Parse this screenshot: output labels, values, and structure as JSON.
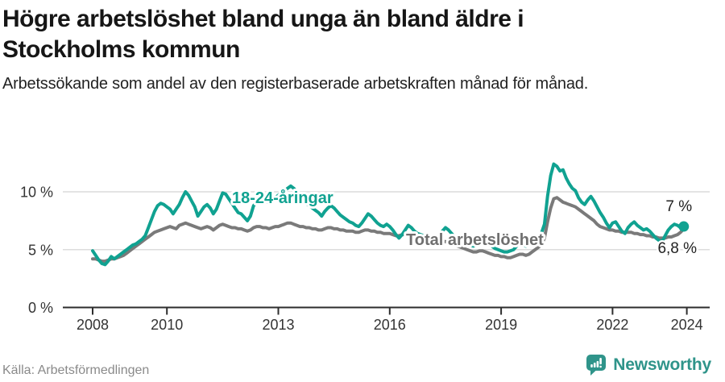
{
  "header": {
    "title": "Högre arbetslöshet bland unga än bland äldre i Stockholms kommun",
    "subtitle": "Arbetssökande som andel av den registerbaserade arbetskraften månad för månad."
  },
  "footer": {
    "source": "Källa: Arbetsförmedlingen",
    "brand": "Newsworthy",
    "brand_icon": "newsworthy-speech-bubble-bar-chart-icon"
  },
  "colors": {
    "young_line": "#10a291",
    "total_line": "#7a7a7a",
    "total_label_text": "#6f6f6f",
    "grid": "#dcdcdc",
    "axis": "#2d2d2d",
    "tick_text": "#333333",
    "annotation_text": "#222222",
    "brand_teal": "#2f948a"
  },
  "chart_data": {
    "type": "line",
    "title": "Högre arbetslöshet bland unga än bland äldre i Stockholms kommun",
    "subtitle": "Arbetssökande som andel av den registerbaserade arbetskraften månad för månad.",
    "frequency": "monthly",
    "x_start": "2008-01",
    "x_end": "2023-12",
    "x_ticks": [
      2008,
      2010,
      2013,
      2016,
      2019,
      2022,
      2024
    ],
    "y_ticks": [
      0,
      5,
      10
    ],
    "y_tick_labels": [
      "0 %",
      "5 %",
      "10 %"
    ],
    "ylim": [
      0,
      13
    ],
    "grid": "horizontal-only",
    "legend": "inline-series-labels",
    "series": [
      {
        "id": "young",
        "name": "18-24-åringar",
        "color": "#10a291",
        "values": [
          4.9,
          4.5,
          4.1,
          3.8,
          3.7,
          4.0,
          4.4,
          4.2,
          4.4,
          4.6,
          4.8,
          5.0,
          5.2,
          5.4,
          5.5,
          5.7,
          5.9,
          6.2,
          6.9,
          7.6,
          8.3,
          8.8,
          9.0,
          8.9,
          8.7,
          8.5,
          8.1,
          8.5,
          8.9,
          9.5,
          10.0,
          9.7,
          9.2,
          8.7,
          7.9,
          8.3,
          8.7,
          8.9,
          8.6,
          8.1,
          8.5,
          9.2,
          9.9,
          9.8,
          9.4,
          9.0,
          8.6,
          8.2,
          8.1,
          7.8,
          7.5,
          7.9,
          8.8,
          9.1,
          9.4,
          9.6,
          9.3,
          9.0,
          9.2,
          9.5,
          9.7,
          9.9,
          10.1,
          10.3,
          10.5,
          10.3,
          10.0,
          9.6,
          9.3,
          9.0,
          8.8,
          8.6,
          8.4,
          8.2,
          7.9,
          8.3,
          8.6,
          8.8,
          8.6,
          8.3,
          8.0,
          7.8,
          7.6,
          7.4,
          7.3,
          7.1,
          7.0,
          7.3,
          7.7,
          8.1,
          7.9,
          7.6,
          7.3,
          7.1,
          7.0,
          7.2,
          7.0,
          6.7,
          6.3,
          6.0,
          6.3,
          6.7,
          7.1,
          6.9,
          6.6,
          6.4,
          6.3,
          6.2,
          6.1,
          6.0,
          5.9,
          6.0,
          6.2,
          6.6,
          6.9,
          6.7,
          6.4,
          6.1,
          5.9,
          5.8,
          5.7,
          5.5,
          5.4,
          5.3,
          5.4,
          5.7,
          6.0,
          5.8,
          5.5,
          5.3,
          5.1,
          5.0,
          4.9,
          4.8,
          4.8,
          4.9,
          5.0,
          5.3,
          5.6,
          5.4,
          5.3,
          5.4,
          5.6,
          5.9,
          6.2,
          6.4,
          7.2,
          9.6,
          11.4,
          12.4,
          12.2,
          11.8,
          11.9,
          11.2,
          10.7,
          10.3,
          10.1,
          9.5,
          9.1,
          8.9,
          9.3,
          9.6,
          9.2,
          8.7,
          8.2,
          7.8,
          7.3,
          6.9,
          7.3,
          7.4,
          7.0,
          6.6,
          6.4,
          6.9,
          7.2,
          7.4,
          7.1,
          6.9,
          6.7,
          6.8,
          6.6,
          6.3,
          6.0,
          5.8,
          5.7,
          6.2,
          6.7,
          7.0,
          7.2,
          7.1,
          6.9,
          7.0
        ]
      },
      {
        "id": "total",
        "name": "Total arbetslöshet",
        "color": "#7a7a7a",
        "values": [
          4.2,
          4.2,
          4.1,
          4.0,
          4.0,
          4.1,
          4.2,
          4.2,
          4.3,
          4.4,
          4.5,
          4.7,
          4.9,
          5.1,
          5.3,
          5.5,
          5.7,
          5.9,
          6.1,
          6.3,
          6.5,
          6.6,
          6.7,
          6.8,
          6.9,
          7.0,
          6.9,
          6.8,
          7.1,
          7.2,
          7.3,
          7.2,
          7.1,
          7.0,
          6.9,
          6.8,
          6.9,
          7.0,
          6.9,
          6.7,
          6.9,
          7.1,
          7.2,
          7.1,
          7.0,
          6.9,
          6.9,
          6.8,
          6.8,
          6.7,
          6.6,
          6.7,
          6.9,
          7.0,
          7.0,
          6.9,
          6.9,
          6.8,
          6.9,
          7.0,
          7.0,
          7.1,
          7.2,
          7.3,
          7.3,
          7.2,
          7.1,
          7.0,
          7.0,
          6.9,
          6.9,
          6.8,
          6.8,
          6.7,
          6.7,
          6.8,
          6.9,
          6.9,
          6.8,
          6.8,
          6.7,
          6.7,
          6.6,
          6.6,
          6.6,
          6.5,
          6.5,
          6.6,
          6.7,
          6.7,
          6.6,
          6.6,
          6.5,
          6.5,
          6.4,
          6.4,
          6.4,
          6.3,
          6.2,
          6.2,
          6.3,
          6.3,
          6.3,
          6.2,
          6.1,
          6.0,
          5.9,
          5.9,
          5.8,
          5.7,
          5.6,
          5.6,
          5.6,
          5.7,
          5.7,
          5.6,
          5.5,
          5.4,
          5.3,
          5.2,
          5.1,
          5.0,
          4.9,
          4.8,
          4.8,
          4.9,
          4.9,
          4.8,
          4.7,
          4.6,
          4.5,
          4.5,
          4.4,
          4.4,
          4.3,
          4.3,
          4.4,
          4.5,
          4.6,
          4.6,
          4.5,
          4.6,
          4.8,
          5.0,
          5.2,
          5.4,
          6.0,
          7.4,
          8.6,
          9.4,
          9.5,
          9.3,
          9.1,
          9.0,
          8.9,
          8.8,
          8.7,
          8.5,
          8.3,
          8.1,
          7.9,
          7.7,
          7.5,
          7.2,
          7.0,
          6.9,
          6.8,
          6.7,
          6.7,
          6.6,
          6.6,
          6.5,
          6.5,
          6.5,
          6.5,
          6.4,
          6.4,
          6.3,
          6.3,
          6.2,
          6.2,
          6.1,
          6.1,
          6.0,
          6.0,
          6.0,
          6.1,
          6.1,
          6.2,
          6.3,
          6.5,
          6.8
        ]
      }
    ],
    "annotations": [
      {
        "id": "young-end-value-label",
        "text": "7 %",
        "series": "young",
        "position": "above-last-point"
      },
      {
        "id": "total-end-value-label",
        "text": "6,8 %",
        "series": "total",
        "position": "below-last-point"
      }
    ],
    "end_marker": {
      "series": "young",
      "shape": "dot"
    }
  }
}
